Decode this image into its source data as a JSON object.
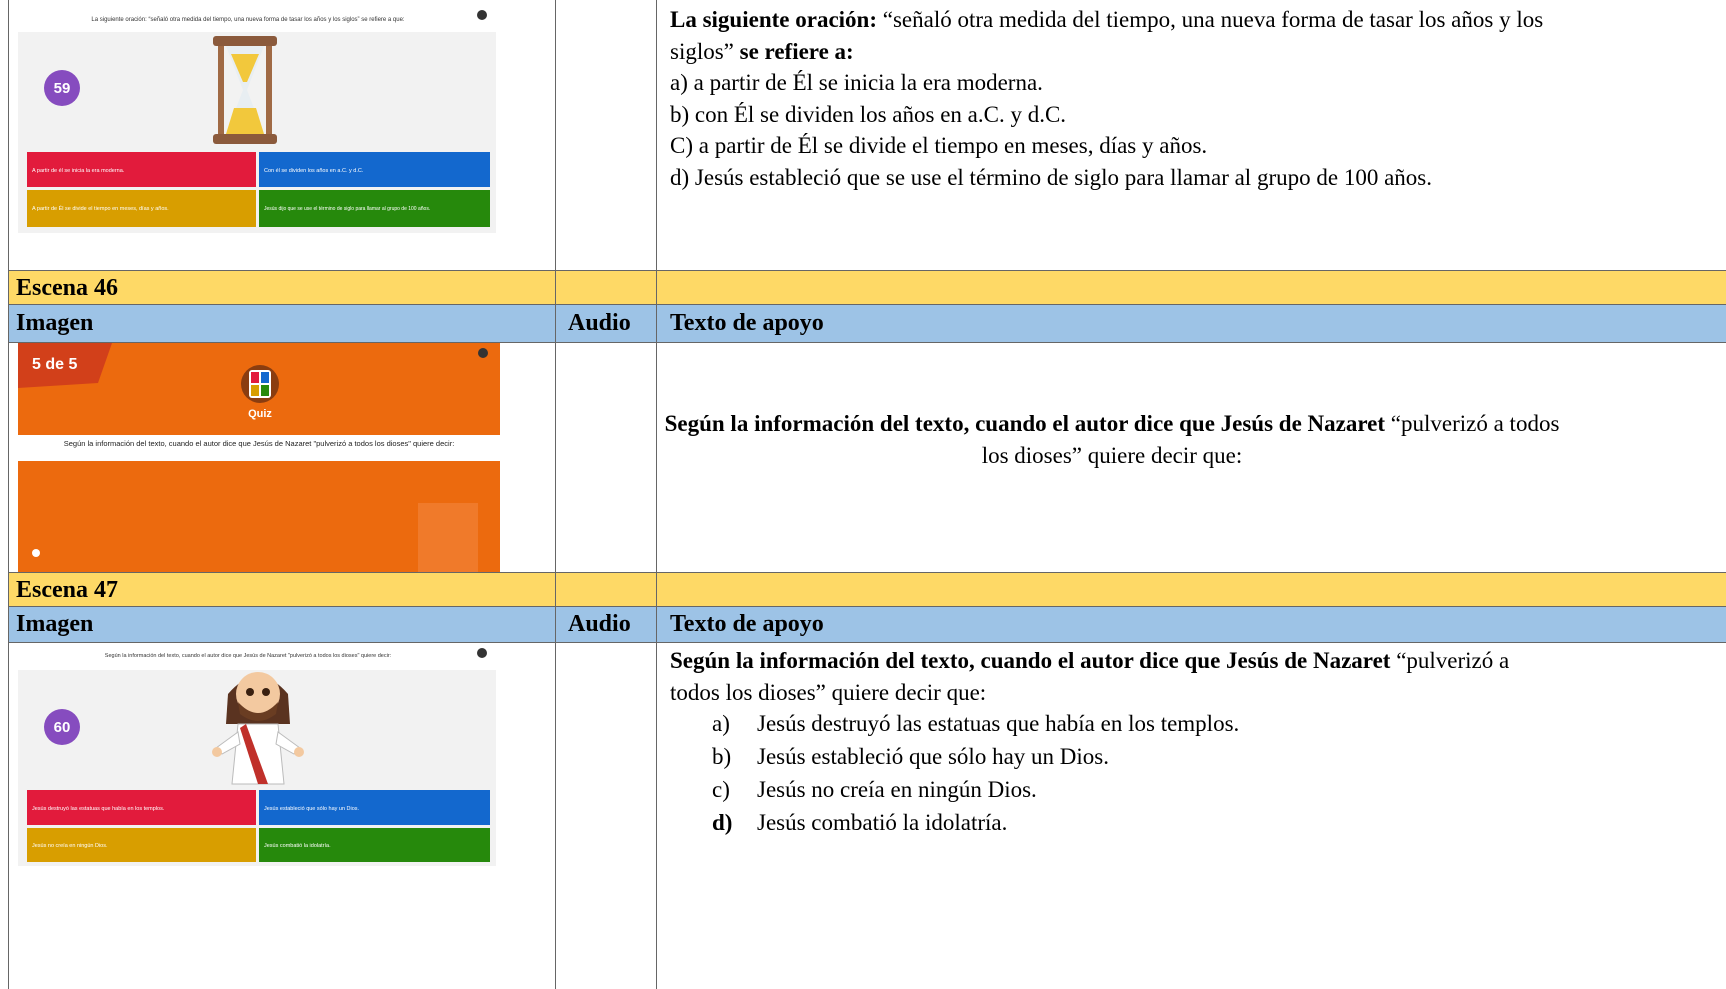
{
  "scene_45": {
    "image": {
      "question": "La siguiente oración: “señaló otra medida del tiempo, una nueva forma de tasar los años y los siglos” se refiere a que:",
      "counter": "59",
      "answers": [
        "A partir de él se inicia la era moderna.",
        "Con él se dividen los años en a.C. y d.C.",
        "A partir de Él se divide el tiempo en meses, días y años.",
        "Jesús dijo que se use el término de siglo para llamar al grupo de 100 años."
      ]
    },
    "text": {
      "lead_bold": "La siguiente oración:",
      "quote": "“señaló otra medida del tiempo, una nueva forma de tasar los años y los siglos”",
      "end_bold": "se refiere a:",
      "options": [
        "a) a partir de Él se inicia la era moderna.",
        "b) con Él se dividen los años en a.C. y d.C.",
        "C) a partir de Él se divide el tiempo en meses, días y años.",
        "d) Jesús estableció que se use el término de siglo para llamar al grupo de 100 años."
      ]
    }
  },
  "scene_46": {
    "label": "Escena 46",
    "headers": [
      "Imagen",
      "Audio",
      "Texto de apoyo"
    ],
    "image": {
      "counter": "5 de 5",
      "badge": "Quiz",
      "question": "Según la información del texto, cuando el autor dice que Jesús de Nazaret \"pulverizó a todos los dioses\" quiere decir:"
    },
    "text": {
      "bold": "Según la información del texto, cuando el autor dice que Jesús de Nazaret",
      "rest": "“pulverizó a todos los dioses” quiere decir que:"
    }
  },
  "scene_47": {
    "label": "Escena 47",
    "headers": [
      "Imagen",
      "Audio",
      "Texto de apoyo"
    ],
    "image": {
      "question": "Según la información del texto, cuando el autor dice que Jesús de Nazaret \"pulverizó a todos los dioses\" quiere decir:",
      "counter": "60",
      "answers": [
        "Jesús destruyó las estatuas que había en los templos.",
        "Jesús estableció que sólo hay un Dios.",
        "Jesús no creía en ningún Dios.",
        "Jesús combatió la idolatría."
      ]
    },
    "text": {
      "bold": "Según la información del texto, cuando el autor dice que Jesús de Nazaret",
      "rest": "“pulverizó a todos los dioses” quiere decir que:",
      "options": [
        {
          "letter": "a)",
          "text": "Jesús destruyó las estatuas que había en los templos."
        },
        {
          "letter": "b)",
          "text": "Jesús estableció que sólo hay un Dios."
        },
        {
          "letter": "c)",
          "text": "Jesús no creía en ningún Dios."
        },
        {
          "letter": "d)",
          "text": "Jesús combatió la idolatría."
        }
      ]
    }
  }
}
